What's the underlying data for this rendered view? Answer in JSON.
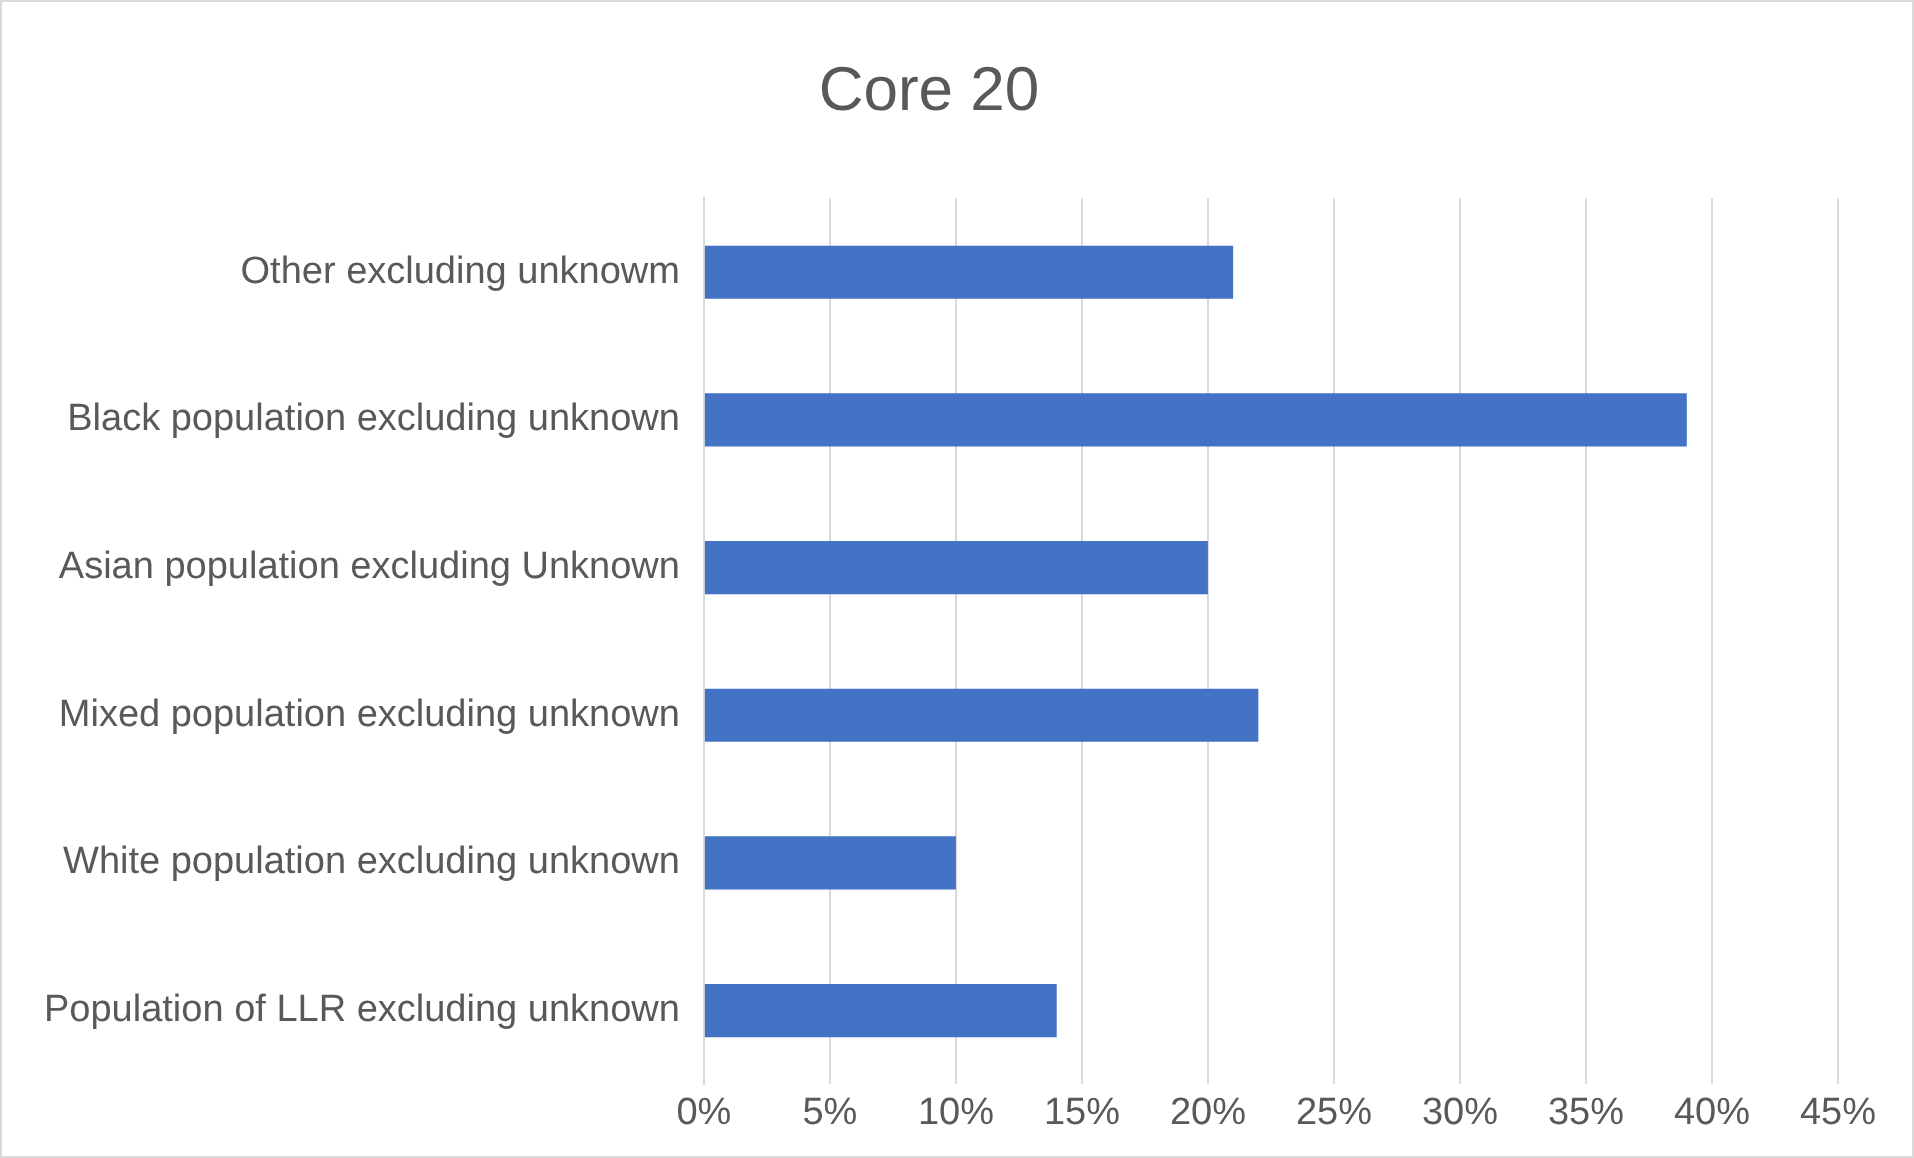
{
  "chart_data": {
    "type": "bar",
    "orientation": "horizontal",
    "title": "Core 20",
    "categories": [
      "Other excluding unknowm",
      "Black population excluding unknown",
      "Asian population excluding Unknown",
      "Mixed population excluding unknown",
      "White population excluding unknown",
      "Population of LLR excluding unknown"
    ],
    "values": [
      21,
      39,
      20,
      22,
      10,
      14
    ],
    "color": "#4472c4",
    "xlim": [
      0,
      45
    ],
    "xticks": [
      {
        "value": 0,
        "label": "0%"
      },
      {
        "value": 5,
        "label": "5%"
      },
      {
        "value": 10,
        "label": "10%"
      },
      {
        "value": 15,
        "label": "15%"
      },
      {
        "value": 20,
        "label": "20%"
      },
      {
        "value": 25,
        "label": "25%"
      },
      {
        "value": 30,
        "label": "30%"
      },
      {
        "value": 35,
        "label": "35%"
      },
      {
        "value": 40,
        "label": "40%"
      },
      {
        "value": 45,
        "label": "45%"
      }
    ],
    "grid": "x",
    "legend": false
  }
}
